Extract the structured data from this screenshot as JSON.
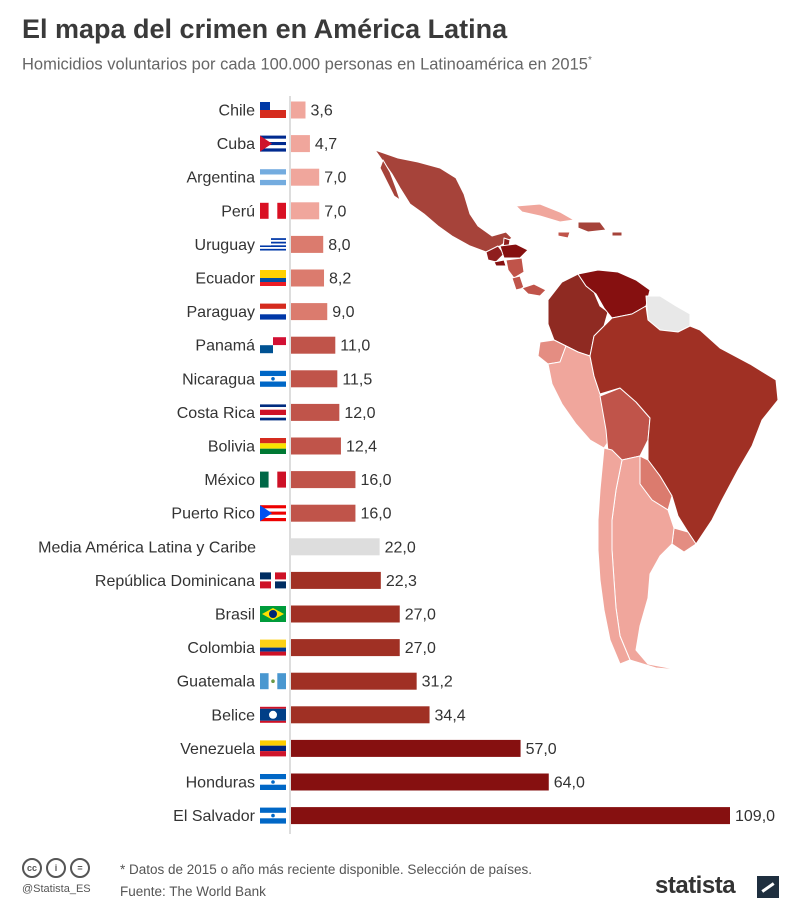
{
  "header": {
    "title": "El mapa del crimen en América Latina",
    "subtitle": "Homicidios voluntarios por cada 100.000 personas en Latinoamérica en 2015",
    "subtitle_mark": "*"
  },
  "chart_data": {
    "type": "bar",
    "orientation": "horizontal",
    "title": "El mapa del crimen en América Latina",
    "subtitle": "Homicidios voluntarios por cada 100.000 personas en Latinoamérica en 2015",
    "categories": [
      "Chile",
      "Cuba",
      "Argentina",
      "Perú",
      "Uruguay",
      "Ecuador",
      "Paraguay",
      "Panamá",
      "Nicaragua",
      "Costa Rica",
      "Bolivia",
      "México",
      "Puerto Rico",
      "Media América Latina y Caribe",
      "República Dominicana",
      "Brasil",
      "Colombia",
      "Guatemala",
      "Belice",
      "Venezuela",
      "Honduras",
      "El Salvador"
    ],
    "values": [
      3.6,
      4.7,
      7.0,
      7.0,
      8.0,
      8.2,
      9.0,
      11.0,
      11.5,
      12.0,
      12.4,
      16.0,
      16.0,
      22.0,
      22.3,
      27.0,
      27.0,
      31.2,
      34.4,
      57.0,
      64.0,
      109.0
    ],
    "value_labels": [
      "3,6",
      "4,7",
      "7,0",
      "7,0",
      "8,0",
      "8,2",
      "9,0",
      "11,0",
      "11,5",
      "12,0",
      "12,4",
      "16,0",
      "16,0",
      "22,0",
      "22,3",
      "27,0",
      "27,0",
      "31,2",
      "34,4",
      "57,0",
      "64,0",
      "109,0"
    ],
    "highlight_category": "Media América Latina y Caribe",
    "xlim": [
      0,
      109
    ],
    "grid": false,
    "legend": "none",
    "colors": {
      "low": "#f0a69c",
      "mid_low": "#db7b6e",
      "mid": "#c0544a",
      "high": "#a03024",
      "very_high": "#861010",
      "average": "#dddddd",
      "axis": "#bbbbbb"
    },
    "flags": [
      "chile-flag",
      "cuba-flag",
      "argentina-flag",
      "peru-flag",
      "uruguay-flag",
      "ecuador-flag",
      "paraguay-flag",
      "panama-flag",
      "nicaragua-flag",
      "costa-rica-flag",
      "bolivia-flag",
      "mexico-flag",
      "puerto-rico-flag",
      "",
      "dominican-republic-flag",
      "brazil-flag",
      "colombia-flag",
      "guatemala-flag",
      "belize-flag",
      "venezuela-flag",
      "honduras-flag",
      "el-salvador-flag"
    ]
  },
  "footer": {
    "note": "* Datos de 2015 o año más reciente disponible. Selección de países.",
    "source": "Fuente: The World Bank",
    "handle": "@Statista_ES",
    "brand": "statista",
    "license_icons": [
      "cc-icon",
      "attribution-icon",
      "no-derivatives-icon"
    ]
  }
}
